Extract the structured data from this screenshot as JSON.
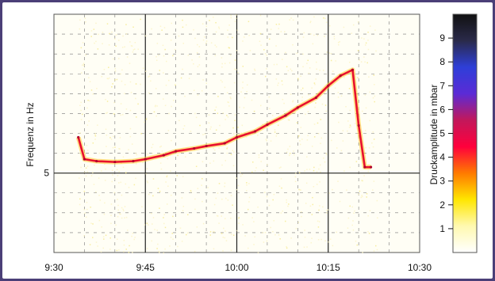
{
  "chart_data": {
    "type": "heatmap",
    "title": "",
    "xlabel": "",
    "ylabel": "Frequenz in Hz",
    "x_ticks": [
      "9:30",
      "9:45",
      "10:00",
      "10:15",
      "10:30"
    ],
    "x_range": [
      "9:30",
      "10:30"
    ],
    "y_ticks": [
      5
    ],
    "y_tick_labels": [
      "5"
    ],
    "grid": true,
    "series": [
      {
        "x": [
          "9:34",
          "9:35",
          "9:37",
          "9:40",
          "9:43",
          "9:45",
          "9:48",
          "9:50",
          "9:53",
          "9:55",
          "9:58",
          "10:00",
          "10:03",
          "10:05",
          "10:08",
          "10:10",
          "10:13",
          "10:15",
          "10:17",
          "10:19",
          "10:20",
          "10:21",
          "10:22"
        ],
        "y": [
          5.9,
          5.35,
          5.3,
          5.28,
          5.3,
          5.35,
          5.45,
          5.55,
          5.62,
          5.68,
          5.75,
          5.9,
          6.05,
          6.22,
          6.45,
          6.65,
          6.9,
          7.2,
          7.45,
          7.6,
          6.2,
          5.15,
          5.15
        ]
      }
    ],
    "colorbar": {
      "label": "Druckamplitude in mbar",
      "ticks": [
        1,
        2,
        3,
        4,
        5,
        6,
        7,
        8,
        9
      ],
      "range": [
        0,
        10
      ],
      "colors": [
        "#ffffff",
        "#fff9b0",
        "#ffe600",
        "#ff7a00",
        "#ff003c",
        "#c2185b",
        "#5b2bd6",
        "#2e3fd8",
        "#2a2a4a",
        "#111111"
      ]
    }
  }
}
